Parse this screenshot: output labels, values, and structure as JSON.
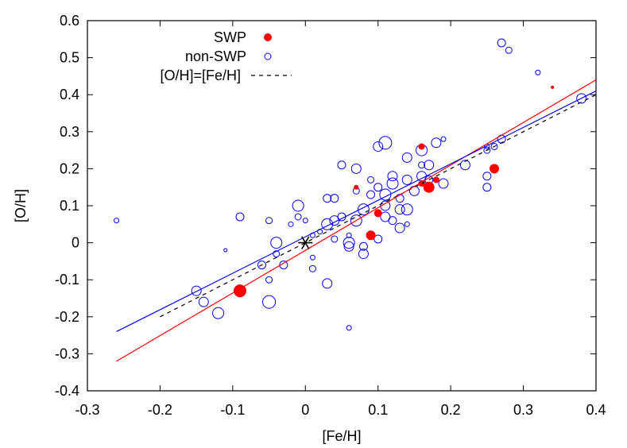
{
  "chart_data": {
    "type": "scatter",
    "xlabel": "[Fe/H]",
    "ylabel": "[O/H]",
    "xlim": [
      -0.3,
      0.4
    ],
    "ylim": [
      -0.4,
      0.6
    ],
    "xticks": [
      -0.3,
      -0.2,
      -0.1,
      0,
      0.1,
      0.2,
      0.3,
      0.4
    ],
    "yticks": [
      -0.4,
      -0.3,
      -0.2,
      -0.1,
      0,
      0.1,
      0.2,
      0.3,
      0.4,
      0.5,
      0.6
    ],
    "xtick_labels": [
      "-0.3",
      "-0.2",
      "-0.1",
      "0",
      "0.1",
      "0.2",
      "0.3",
      "0.4"
    ],
    "ytick_labels": [
      "-0.4",
      "-0.3",
      "-0.2",
      "-0.1",
      "0",
      "0.1",
      "0.2",
      "0.3",
      "0.4",
      "0.5",
      "0.6"
    ],
    "grid": false,
    "legend_position": "top-left",
    "legend": [
      {
        "label": "SWP",
        "style": "filled-circle",
        "color": "#ff0000"
      },
      {
        "label": "non-SWP",
        "style": "open-circle",
        "color": "#0000ff"
      },
      {
        "label": "[O/H]=[Fe/H]",
        "style": "dashed-line",
        "color": "#000000"
      }
    ],
    "series": [
      {
        "name": "SWP",
        "marker": "filled-circle",
        "color": "#ff0000",
        "points": [
          {
            "x": -0.09,
            "y": -0.13,
            "r": 8
          },
          {
            "x": 0.09,
            "y": 0.02,
            "r": 6
          },
          {
            "x": 0.1,
            "y": 0.08,
            "r": 5
          },
          {
            "x": 0.07,
            "y": 0.15,
            "r": 3
          },
          {
            "x": 0.16,
            "y": 0.26,
            "r": 4
          },
          {
            "x": 0.16,
            "y": 0.16,
            "r": 4
          },
          {
            "x": 0.17,
            "y": 0.15,
            "r": 7
          },
          {
            "x": 0.18,
            "y": 0.17,
            "r": 4
          },
          {
            "x": 0.26,
            "y": 0.2,
            "r": 6
          },
          {
            "x": 0.34,
            "y": 0.42,
            "r": 2
          }
        ]
      },
      {
        "name": "non-SWP",
        "marker": "open-circle",
        "color": "#0000ff",
        "points": [
          {
            "x": -0.26,
            "y": 0.06,
            "r": 3
          },
          {
            "x": -0.15,
            "y": -0.13,
            "r": 6
          },
          {
            "x": -0.14,
            "y": -0.16,
            "r": 6
          },
          {
            "x": -0.12,
            "y": -0.19,
            "r": 7
          },
          {
            "x": -0.11,
            "y": -0.02,
            "r": 2
          },
          {
            "x": -0.09,
            "y": 0.07,
            "r": 5
          },
          {
            "x": -0.06,
            "y": -0.06,
            "r": 5
          },
          {
            "x": -0.05,
            "y": -0.1,
            "r": 4
          },
          {
            "x": -0.05,
            "y": -0.16,
            "r": 8
          },
          {
            "x": -0.05,
            "y": 0.06,
            "r": 4
          },
          {
            "x": -0.04,
            "y": 0.0,
            "r": 7
          },
          {
            "x": -0.04,
            "y": -0.03,
            "r": 4
          },
          {
            "x": -0.03,
            "y": -0.06,
            "r": 5
          },
          {
            "x": -0.02,
            "y": 0.05,
            "r": 3
          },
          {
            "x": -0.01,
            "y": 0.1,
            "r": 7
          },
          {
            "x": -0.01,
            "y": 0.07,
            "r": 4
          },
          {
            "x": 0.0,
            "y": 0.06,
            "r": 3
          },
          {
            "x": 0.01,
            "y": -0.04,
            "r": 3
          },
          {
            "x": 0.01,
            "y": -0.07,
            "r": 4
          },
          {
            "x": 0.01,
            "y": 0.02,
            "r": 3
          },
          {
            "x": 0.02,
            "y": 0.03,
            "r": 3
          },
          {
            "x": 0.03,
            "y": 0.05,
            "r": 7
          },
          {
            "x": 0.03,
            "y": 0.12,
            "r": 5
          },
          {
            "x": 0.03,
            "y": -0.11,
            "r": 6
          },
          {
            "x": 0.04,
            "y": 0.06,
            "r": 6
          },
          {
            "x": 0.04,
            "y": 0.12,
            "r": 5
          },
          {
            "x": 0.04,
            "y": 0.01,
            "r": 4
          },
          {
            "x": 0.05,
            "y": 0.07,
            "r": 5
          },
          {
            "x": 0.05,
            "y": 0.21,
            "r": 5
          },
          {
            "x": 0.06,
            "y": 0.0,
            "r": 7
          },
          {
            "x": 0.06,
            "y": -0.01,
            "r": 6
          },
          {
            "x": 0.06,
            "y": 0.02,
            "r": 3
          },
          {
            "x": 0.06,
            "y": -0.23,
            "r": 3
          },
          {
            "x": 0.07,
            "y": 0.06,
            "r": 7
          },
          {
            "x": 0.07,
            "y": 0.14,
            "r": 4
          },
          {
            "x": 0.07,
            "y": 0.2,
            "r": 6
          },
          {
            "x": 0.08,
            "y": -0.01,
            "r": 5
          },
          {
            "x": 0.08,
            "y": -0.03,
            "r": 6
          },
          {
            "x": 0.08,
            "y": 0.09,
            "r": 7
          },
          {
            "x": 0.09,
            "y": 0.13,
            "r": 5
          },
          {
            "x": 0.09,
            "y": 0.17,
            "r": 4
          },
          {
            "x": 0.1,
            "y": 0.15,
            "r": 5
          },
          {
            "x": 0.1,
            "y": 0.01,
            "r": 5
          },
          {
            "x": 0.1,
            "y": 0.26,
            "r": 6
          },
          {
            "x": 0.11,
            "y": 0.27,
            "r": 8
          },
          {
            "x": 0.11,
            "y": 0.13,
            "r": 7
          },
          {
            "x": 0.11,
            "y": 0.07,
            "r": 6
          },
          {
            "x": 0.11,
            "y": 0.1,
            "r": 6
          },
          {
            "x": 0.12,
            "y": 0.06,
            "r": 5
          },
          {
            "x": 0.12,
            "y": 0.18,
            "r": 6
          },
          {
            "x": 0.12,
            "y": 0.16,
            "r": 7
          },
          {
            "x": 0.13,
            "y": 0.04,
            "r": 6
          },
          {
            "x": 0.13,
            "y": 0.09,
            "r": 6
          },
          {
            "x": 0.13,
            "y": 0.12,
            "r": 5
          },
          {
            "x": 0.14,
            "y": 0.09,
            "r": 7
          },
          {
            "x": 0.14,
            "y": 0.05,
            "r": 3
          },
          {
            "x": 0.14,
            "y": 0.17,
            "r": 6
          },
          {
            "x": 0.14,
            "y": 0.23,
            "r": 6
          },
          {
            "x": 0.15,
            "y": 0.14,
            "r": 6
          },
          {
            "x": 0.16,
            "y": 0.25,
            "r": 7
          },
          {
            "x": 0.16,
            "y": 0.18,
            "r": 6
          },
          {
            "x": 0.16,
            "y": 0.21,
            "r": 4
          },
          {
            "x": 0.17,
            "y": 0.21,
            "r": 6
          },
          {
            "x": 0.17,
            "y": 0.17,
            "r": 5
          },
          {
            "x": 0.18,
            "y": 0.27,
            "r": 6
          },
          {
            "x": 0.19,
            "y": 0.16,
            "r": 6
          },
          {
            "x": 0.19,
            "y": 0.28,
            "r": 3
          },
          {
            "x": 0.22,
            "y": 0.21,
            "r": 6
          },
          {
            "x": 0.25,
            "y": 0.15,
            "r": 5
          },
          {
            "x": 0.25,
            "y": 0.25,
            "r": 4
          },
          {
            "x": 0.25,
            "y": 0.26,
            "r": 3
          },
          {
            "x": 0.25,
            "y": 0.18,
            "r": 5
          },
          {
            "x": 0.26,
            "y": 0.26,
            "r": 4
          },
          {
            "x": 0.27,
            "y": 0.28,
            "r": 5
          },
          {
            "x": 0.27,
            "y": 0.54,
            "r": 5
          },
          {
            "x": 0.28,
            "y": 0.52,
            "r": 4
          },
          {
            "x": 0.32,
            "y": 0.46,
            "r": 3
          },
          {
            "x": 0.38,
            "y": 0.39,
            "r": 6
          }
        ]
      }
    ],
    "lines": [
      {
        "name": "[O/H]=[Fe/H]",
        "style": "dashed",
        "color": "#000000",
        "x": [
          -0.2,
          0.4
        ],
        "y": [
          -0.2,
          0.4
        ]
      },
      {
        "name": "SWP fit",
        "style": "solid",
        "color": "#ff0000",
        "x": [
          -0.26,
          0.4
        ],
        "y": [
          -0.32,
          0.44
        ]
      },
      {
        "name": "non-SWP fit",
        "style": "solid",
        "color": "#0000ff",
        "x": [
          -0.26,
          0.4
        ],
        "y": [
          -0.24,
          0.41
        ]
      }
    ],
    "annotations": [
      {
        "type": "sun-symbol",
        "x": 0.0,
        "y": 0.0,
        "color": "#000000"
      }
    ]
  }
}
